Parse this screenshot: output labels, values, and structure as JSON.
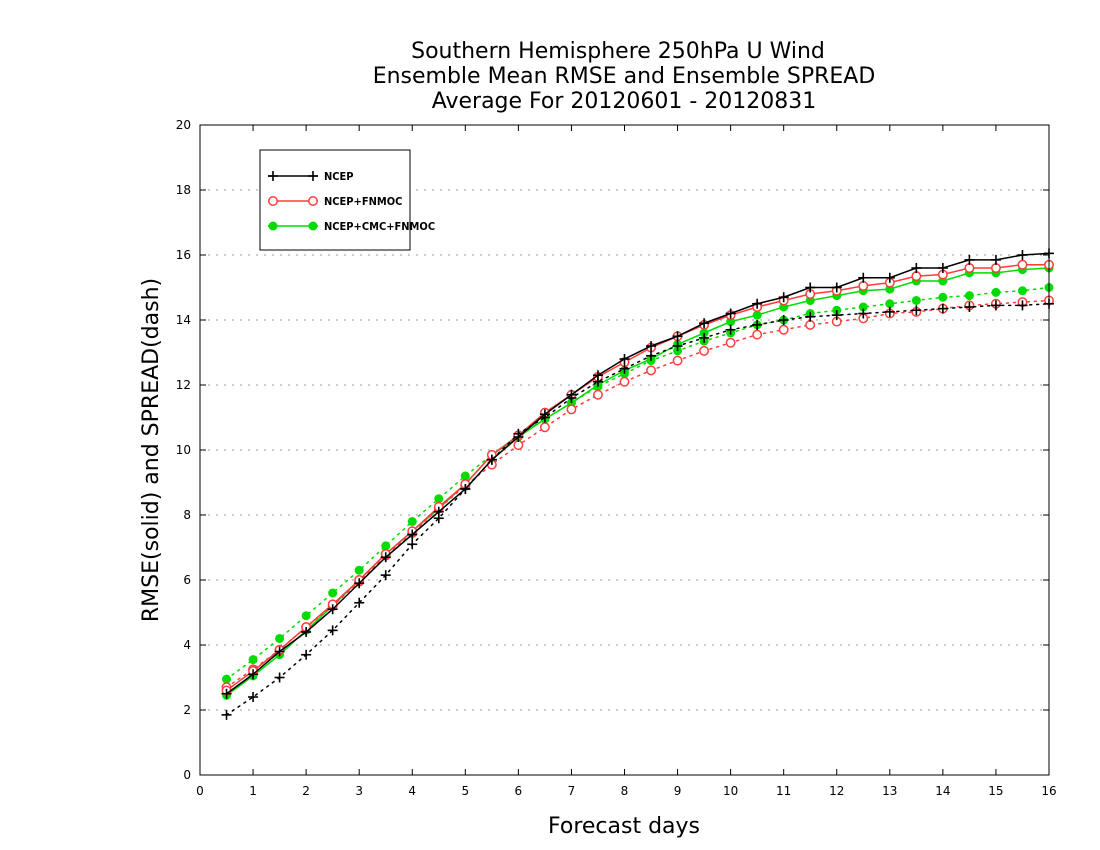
{
  "chart_data": {
    "type": "line",
    "title": [
      "Southern Hemisphere 250hPa U Wind",
      "Ensemble Mean RMSE and Ensemble SPREAD",
      "Average For 20120601 - 20120831"
    ],
    "xlabel": "Forecast days",
    "ylabel": "RMSE(solid) and SPREAD(dash)",
    "xlim": [
      0,
      16
    ],
    "ylim": [
      0,
      20
    ],
    "xticks": [
      0,
      1,
      2,
      3,
      4,
      5,
      6,
      7,
      8,
      9,
      10,
      11,
      12,
      13,
      14,
      15,
      16
    ],
    "yticks": [
      0,
      2,
      4,
      6,
      8,
      10,
      12,
      14,
      16,
      18,
      20
    ],
    "grid": "dotted horizontal",
    "legend_position": "top-left",
    "x": [
      0.5,
      1,
      1.5,
      2,
      2.5,
      3,
      3.5,
      4,
      4.5,
      5,
      5.5,
      6,
      6.5,
      7,
      7.5,
      8,
      8.5,
      9,
      9.5,
      10,
      10.5,
      11,
      11.5,
      12,
      12.5,
      13,
      13.5,
      14,
      14.5,
      15,
      15.5,
      16
    ],
    "series": [
      {
        "name": "NCEP",
        "color": "#000000",
        "marker": "plus",
        "rmse": [
          2.5,
          3.1,
          3.8,
          4.4,
          5.1,
          5.9,
          6.7,
          7.4,
          8.1,
          8.8,
          9.7,
          10.4,
          11.1,
          11.7,
          12.3,
          12.8,
          13.2,
          13.5,
          13.9,
          14.2,
          14.5,
          14.7,
          15.0,
          15.0,
          15.3,
          15.3,
          15.6,
          15.6,
          15.85,
          15.85,
          16.0,
          16.05
        ],
        "spread": [
          1.85,
          2.4,
          3.0,
          3.7,
          4.45,
          5.3,
          6.15,
          7.1,
          7.9,
          8.8,
          9.7,
          10.5,
          11.0,
          11.6,
          12.1,
          12.5,
          12.9,
          13.2,
          13.45,
          13.7,
          13.85,
          14.0,
          14.1,
          14.15,
          14.2,
          14.25,
          14.3,
          14.35,
          14.4,
          14.45,
          14.45,
          14.5
        ]
      },
      {
        "name": "NCEP+FNMOC",
        "color": "#ff3c3c",
        "marker": "open-circle",
        "rmse": [
          2.6,
          3.2,
          3.85,
          4.55,
          5.25,
          6.0,
          6.8,
          7.5,
          8.25,
          8.95,
          9.85,
          10.45,
          11.15,
          11.7,
          12.25,
          12.7,
          13.15,
          13.5,
          13.85,
          14.15,
          14.4,
          14.6,
          14.8,
          14.9,
          15.05,
          15.15,
          15.35,
          15.4,
          15.6,
          15.6,
          15.7,
          15.7
        ],
        "spread": [
          2.7,
          3.25,
          3.85,
          4.55,
          5.2,
          5.95,
          6.75,
          7.45,
          8.2,
          8.9,
          9.55,
          10.15,
          10.7,
          11.25,
          11.7,
          12.1,
          12.45,
          12.75,
          13.05,
          13.3,
          13.55,
          13.7,
          13.85,
          13.95,
          14.05,
          14.2,
          14.25,
          14.35,
          14.45,
          14.5,
          14.55,
          14.6
        ]
      },
      {
        "name": "NCEP+CMC+FNMOC",
        "color": "#00dc00",
        "marker": "filled-circle",
        "rmse": [
          2.45,
          3.05,
          3.7,
          4.45,
          5.2,
          6.0,
          6.8,
          7.5,
          8.2,
          8.95,
          9.85,
          10.4,
          10.95,
          11.45,
          12.0,
          12.45,
          12.8,
          13.25,
          13.6,
          13.95,
          14.15,
          14.4,
          14.6,
          14.75,
          14.9,
          14.95,
          15.2,
          15.2,
          15.45,
          15.45,
          15.55,
          15.6
        ],
        "spread": [
          2.95,
          3.55,
          4.2,
          4.9,
          5.6,
          6.3,
          7.05,
          7.8,
          8.5,
          9.2,
          9.85,
          10.45,
          10.95,
          11.45,
          11.95,
          12.35,
          12.75,
          13.05,
          13.35,
          13.6,
          13.85,
          14.0,
          14.2,
          14.3,
          14.4,
          14.5,
          14.6,
          14.7,
          14.75,
          14.85,
          14.9,
          15.0
        ]
      }
    ]
  }
}
